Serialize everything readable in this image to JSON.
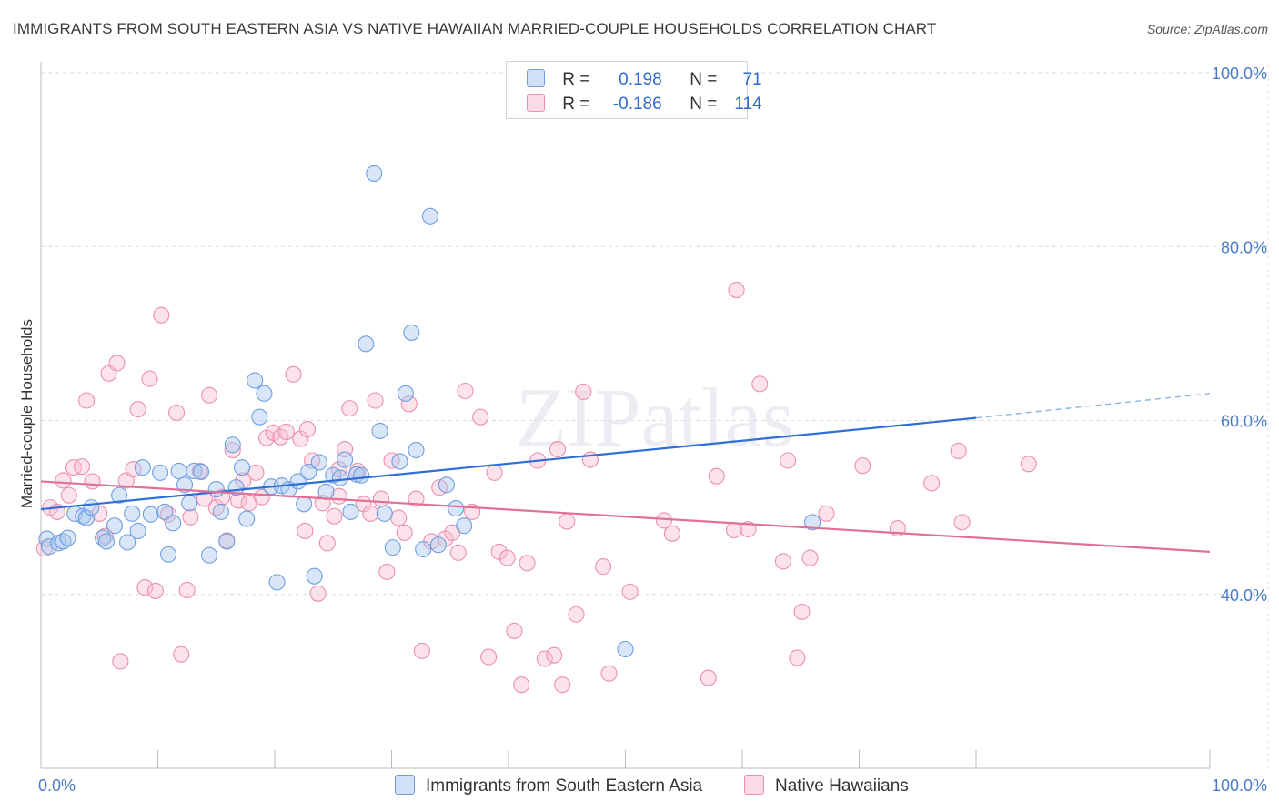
{
  "title": "IMMIGRANTS FROM SOUTH EASTERN ASIA VS NATIVE HAWAIIAN MARRIED-COUPLE HOUSEHOLDS CORRELATION CHART",
  "source": "Source: ZipAtlas.com",
  "watermark": "ZIPatlas",
  "legend": {
    "rows": [
      {
        "r_label": "R =",
        "r_value": "0.198",
        "n_label": "N =",
        "n_value": "71",
        "color": "#a8c8f0",
        "border": "#6f9fe0"
      },
      {
        "r_label": "R =",
        "r_value": "-0.186",
        "n_label": "N =",
        "n_value": "114",
        "color": "#f8bfd0",
        "border": "#ec8fb0"
      }
    ]
  },
  "bottom_legend": [
    {
      "label": "Immigrants from South Eastern Asia",
      "color": "#a8c8f0",
      "border": "#6f9fe0"
    },
    {
      "label": "Native Hawaiians",
      "color": "#f8bfd0",
      "border": "#ec8fb0"
    }
  ],
  "chart_data": {
    "type": "scatter",
    "title": "IMMIGRANTS FROM SOUTH EASTERN ASIA VS NATIVE HAWAIIAN MARRIED-COUPLE HOUSEHOLDS CORRELATION CHART",
    "xlabel": "",
    "ylabel": "Married-couple Households",
    "xlim": [
      0,
      100
    ],
    "ylim": [
      20,
      100
    ],
    "x_tick_labels": [
      "0.0%",
      "100.0%"
    ],
    "y_ticks": [
      40,
      60,
      80,
      100
    ],
    "y_tick_labels": [
      "40.0%",
      "60.0%",
      "80.0%",
      "100.0%"
    ],
    "grid": "horizontal dashed",
    "legend_position": "top-center",
    "series": [
      {
        "name": "Immigrants from South Eastern Asia",
        "color": "#6f9fe0",
        "fill": "#a8c8f0",
        "trend": {
          "x0": 0,
          "y0": 49.8,
          "x1": 80,
          "y1": 60.3,
          "dash_to_x": 100,
          "dash_to_y": 63.1
        },
        "points": [
          [
            0.5,
            46.4
          ],
          [
            0.7,
            45.5
          ],
          [
            1.5,
            45.9
          ],
          [
            1.9,
            46.1
          ],
          [
            2.3,
            46.5
          ],
          [
            2.9,
            49.3
          ],
          [
            3.6,
            49.0
          ],
          [
            3.9,
            48.8
          ],
          [
            4.3,
            50.0
          ],
          [
            5.3,
            46.5
          ],
          [
            5.6,
            46.1
          ],
          [
            6.3,
            47.9
          ],
          [
            6.7,
            51.4
          ],
          [
            7.4,
            46.0
          ],
          [
            7.8,
            49.3
          ],
          [
            8.3,
            47.3
          ],
          [
            8.7,
            54.6
          ],
          [
            9.4,
            49.2
          ],
          [
            10.2,
            54.0
          ],
          [
            10.6,
            49.5
          ],
          [
            10.9,
            44.6
          ],
          [
            11.3,
            48.2
          ],
          [
            11.8,
            54.2
          ],
          [
            12.3,
            52.6
          ],
          [
            12.7,
            50.5
          ],
          [
            13.1,
            54.2
          ],
          [
            13.7,
            54.1
          ],
          [
            14.4,
            44.5
          ],
          [
            15.0,
            52.1
          ],
          [
            15.4,
            49.5
          ],
          [
            15.9,
            46.1
          ],
          [
            16.4,
            57.2
          ],
          [
            16.7,
            52.3
          ],
          [
            17.2,
            54.6
          ],
          [
            17.6,
            48.7
          ],
          [
            18.3,
            64.6
          ],
          [
            18.7,
            60.4
          ],
          [
            19.1,
            63.1
          ],
          [
            19.7,
            52.4
          ],
          [
            20.2,
            41.4
          ],
          [
            20.6,
            52.5
          ],
          [
            21.2,
            52.1
          ],
          [
            22.0,
            53.0
          ],
          [
            22.5,
            50.4
          ],
          [
            22.9,
            54.1
          ],
          [
            23.4,
            42.1
          ],
          [
            23.8,
            55.2
          ],
          [
            24.4,
            51.8
          ],
          [
            25.0,
            53.7
          ],
          [
            25.6,
            53.4
          ],
          [
            26.0,
            55.5
          ],
          [
            26.5,
            49.5
          ],
          [
            27.0,
            53.8
          ],
          [
            27.4,
            53.7
          ],
          [
            27.8,
            68.8
          ],
          [
            28.5,
            88.4
          ],
          [
            29.0,
            58.8
          ],
          [
            29.4,
            49.3
          ],
          [
            30.1,
            45.4
          ],
          [
            30.7,
            55.3
          ],
          [
            31.2,
            63.1
          ],
          [
            32.1,
            56.6
          ],
          [
            32.7,
            45.2
          ],
          [
            33.3,
            83.5
          ],
          [
            34.0,
            45.7
          ],
          [
            34.7,
            52.6
          ],
          [
            35.5,
            49.9
          ],
          [
            36.2,
            47.9
          ],
          [
            31.7,
            70.1
          ],
          [
            50.0,
            33.7
          ],
          [
            66.0,
            48.3
          ]
        ]
      },
      {
        "name": "Native Hawaiians",
        "color": "#ec8fb0",
        "fill": "#f8bfd0",
        "trend": {
          "x0": 0,
          "y0": 53.0,
          "x1": 100,
          "y1": 44.9
        },
        "points": [
          [
            0.3,
            45.3
          ],
          [
            0.8,
            50.0
          ],
          [
            1.4,
            49.5
          ],
          [
            1.9,
            53.1
          ],
          [
            2.4,
            51.4
          ],
          [
            2.8,
            54.6
          ],
          [
            3.5,
            54.7
          ],
          [
            3.9,
            62.3
          ],
          [
            4.4,
            53.0
          ],
          [
            5.0,
            49.3
          ],
          [
            5.5,
            46.7
          ],
          [
            5.8,
            65.4
          ],
          [
            6.5,
            66.6
          ],
          [
            6.8,
            32.3
          ],
          [
            7.3,
            53.1
          ],
          [
            7.9,
            54.4
          ],
          [
            8.3,
            61.3
          ],
          [
            8.9,
            40.8
          ],
          [
            9.3,
            64.8
          ],
          [
            9.8,
            40.4
          ],
          [
            10.3,
            72.1
          ],
          [
            10.9,
            49.2
          ],
          [
            11.6,
            60.9
          ],
          [
            12.0,
            33.1
          ],
          [
            12.5,
            40.5
          ],
          [
            12.8,
            48.9
          ],
          [
            13.6,
            54.2
          ],
          [
            14.0,
            51.0
          ],
          [
            14.4,
            62.9
          ],
          [
            15.0,
            50.0
          ],
          [
            15.5,
            51.2
          ],
          [
            15.9,
            46.2
          ],
          [
            16.4,
            56.6
          ],
          [
            16.9,
            50.8
          ],
          [
            17.3,
            53.1
          ],
          [
            17.8,
            50.5
          ],
          [
            18.4,
            54.0
          ],
          [
            18.9,
            51.2
          ],
          [
            19.3,
            58.0
          ],
          [
            19.9,
            58.6
          ],
          [
            20.5,
            58.1
          ],
          [
            21.0,
            58.7
          ],
          [
            21.6,
            65.3
          ],
          [
            22.2,
            57.9
          ],
          [
            22.6,
            47.3
          ],
          [
            23.2,
            55.4
          ],
          [
            23.7,
            40.1
          ],
          [
            24.1,
            50.5
          ],
          [
            24.5,
            45.9
          ],
          [
            25.1,
            49.0
          ],
          [
            25.5,
            51.3
          ],
          [
            26.0,
            56.7
          ],
          [
            26.4,
            61.4
          ],
          [
            27.1,
            54.2
          ],
          [
            27.6,
            50.4
          ],
          [
            28.2,
            49.3
          ],
          [
            28.6,
            62.3
          ],
          [
            29.1,
            51.0
          ],
          [
            29.6,
            42.6
          ],
          [
            30.0,
            55.4
          ],
          [
            30.6,
            48.8
          ],
          [
            31.1,
            47.1
          ],
          [
            31.5,
            61.9
          ],
          [
            32.1,
            51.0
          ],
          [
            32.6,
            33.5
          ],
          [
            33.4,
            46.1
          ],
          [
            34.1,
            52.3
          ],
          [
            34.6,
            46.4
          ],
          [
            35.2,
            47.1
          ],
          [
            35.7,
            44.8
          ],
          [
            36.3,
            63.4
          ],
          [
            36.9,
            49.5
          ],
          [
            37.6,
            60.4
          ],
          [
            38.3,
            32.8
          ],
          [
            38.8,
            54.0
          ],
          [
            39.2,
            44.9
          ],
          [
            39.9,
            44.2
          ],
          [
            40.5,
            35.8
          ],
          [
            41.1,
            29.6
          ],
          [
            41.6,
            43.6
          ],
          [
            42.5,
            55.4
          ],
          [
            43.1,
            32.6
          ],
          [
            43.9,
            33.0
          ],
          [
            44.2,
            56.7
          ],
          [
            44.6,
            29.6
          ],
          [
            45.0,
            48.4
          ],
          [
            45.8,
            37.7
          ],
          [
            46.4,
            63.3
          ],
          [
            47.0,
            55.5
          ],
          [
            48.1,
            43.2
          ],
          [
            48.6,
            30.9
          ],
          [
            50.4,
            40.3
          ],
          [
            53.3,
            48.5
          ],
          [
            54.0,
            47.0
          ],
          [
            57.1,
            30.4
          ],
          [
            57.8,
            53.6
          ],
          [
            59.3,
            47.4
          ],
          [
            59.5,
            75.0
          ],
          [
            60.5,
            47.5
          ],
          [
            63.5,
            43.8
          ],
          [
            63.9,
            55.4
          ],
          [
            64.7,
            32.7
          ],
          [
            65.1,
            38.0
          ],
          [
            65.8,
            44.2
          ],
          [
            67.2,
            49.3
          ],
          [
            70.3,
            54.8
          ],
          [
            73.3,
            47.6
          ],
          [
            76.2,
            52.8
          ],
          [
            78.8,
            48.3
          ],
          [
            78.5,
            56.5
          ],
          [
            84.5,
            55.0
          ],
          [
            25.5,
            54.4
          ],
          [
            22.8,
            59.0
          ],
          [
            61.5,
            64.2
          ]
        ]
      }
    ]
  }
}
